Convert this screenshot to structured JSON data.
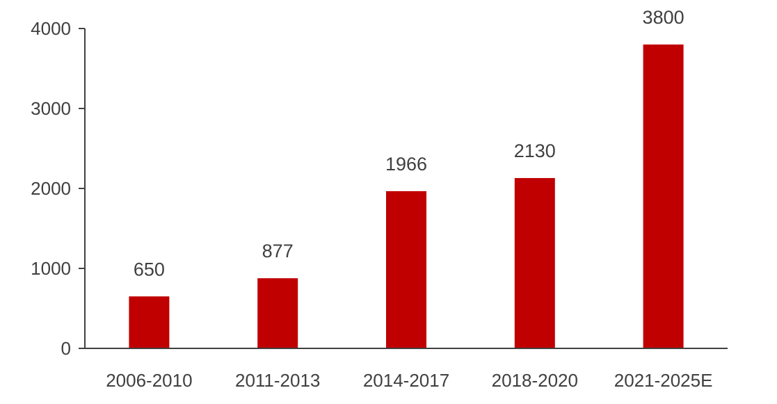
{
  "chart_data": {
    "type": "bar",
    "title": "",
    "xlabel": "",
    "ylabel": "",
    "categories": [
      "2006-2010",
      "2011-2013",
      "2014-2017",
      "2018-2020",
      "2021-2025E"
    ],
    "values": [
      650,
      877,
      1966,
      2130,
      3800
    ],
    "data_labels": [
      "650",
      "877",
      "1966",
      "2130",
      "3800"
    ],
    "ylim": [
      0,
      4000
    ],
    "yticks": [
      0,
      1000,
      2000,
      3000,
      4000
    ],
    "grid": false,
    "legend": "none",
    "bar_color": "#c00000",
    "axis_color": "#404040",
    "text_color": "#404040"
  }
}
